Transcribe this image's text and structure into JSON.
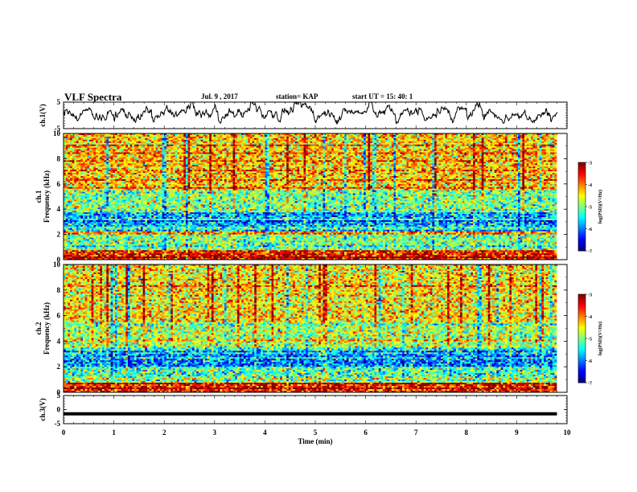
{
  "header": {
    "title": "VLF Spectra",
    "date": "Jul. 9 , 2017",
    "station": "station= KAP",
    "start": "start UT = 15: 40: 1"
  },
  "chart_data": [
    {
      "type": "line",
      "panel": "ch1-waveform",
      "ylabel": "ch.1(V)",
      "ylim": [
        -5,
        5
      ],
      "yticks": [
        "5",
        "-5"
      ],
      "xlim": [
        0,
        10
      ],
      "note_values": "noisy waveform, envelope roughly between -5 and 5 V, typically around 0 to 2 V"
    },
    {
      "type": "heatmap",
      "panel": "ch1-spectrogram",
      "ylabel": "ch.1\nFrequency (kHz)",
      "ylim": [
        0,
        10
      ],
      "yticks": [
        "0",
        "2",
        "4",
        "6",
        "8",
        "10"
      ],
      "xlim": [
        0,
        9.8
      ],
      "colorbar": {
        "label": "log(PSD)(V²/Hz)",
        "range": [
          -7,
          -3
        ],
        "ticks": [
          "-3",
          "-4",
          "-5",
          "-6",
          "-7"
        ]
      },
      "dominant_bands_khz": [
        {
          "range": [
            0,
            0.8
          ],
          "level": -3.5
        },
        {
          "range": [
            0.8,
            2.0
          ],
          "level": -5.0
        },
        {
          "range": [
            2.0,
            2.3
          ],
          "level": -4.0
        },
        {
          "range": [
            2.3,
            3.8
          ],
          "level": -5.8
        },
        {
          "range": [
            3.8,
            5.5
          ],
          "level": -5.0
        },
        {
          "range": [
            5.5,
            10
          ],
          "level": -4.3
        }
      ]
    },
    {
      "type": "heatmap",
      "panel": "ch2-spectrogram",
      "ylabel": "ch.2\nFrequency (kHz)",
      "ylim": [
        0,
        10
      ],
      "yticks": [
        "0",
        "2",
        "4",
        "6",
        "8",
        "10"
      ],
      "xlim": [
        0,
        9.8
      ],
      "colorbar": {
        "label": "log(PSD)(V²/Hz)",
        "range": [
          -7,
          -3
        ],
        "ticks": [
          "-3",
          "-4",
          "-5",
          "-6",
          "-7"
        ]
      },
      "dominant_bands_khz": [
        {
          "range": [
            0,
            0.8
          ],
          "level": -3.6
        },
        {
          "range": [
            0.8,
            2.0
          ],
          "level": -5.2
        },
        {
          "range": [
            2.0,
            3.5
          ],
          "level": -6.0
        },
        {
          "range": [
            3.5,
            5.5
          ],
          "level": -4.8
        },
        {
          "range": [
            5.5,
            10
          ],
          "level": -4.4
        }
      ]
    },
    {
      "type": "line",
      "panel": "ch3-waveform",
      "ylabel": "ch.3(V)",
      "ylim": [
        -5,
        5
      ],
      "yticks": [
        "5",
        "0",
        "-5"
      ],
      "xlim": [
        0,
        10
      ],
      "xticks": [
        "0",
        "1",
        "2",
        "3",
        "4",
        "5",
        "6",
        "7",
        "8",
        "9",
        "10"
      ],
      "xlabel": "Time (min)",
      "x": [
        0,
        9.8
      ],
      "y": [
        -1.5,
        -1.5
      ]
    }
  ]
}
